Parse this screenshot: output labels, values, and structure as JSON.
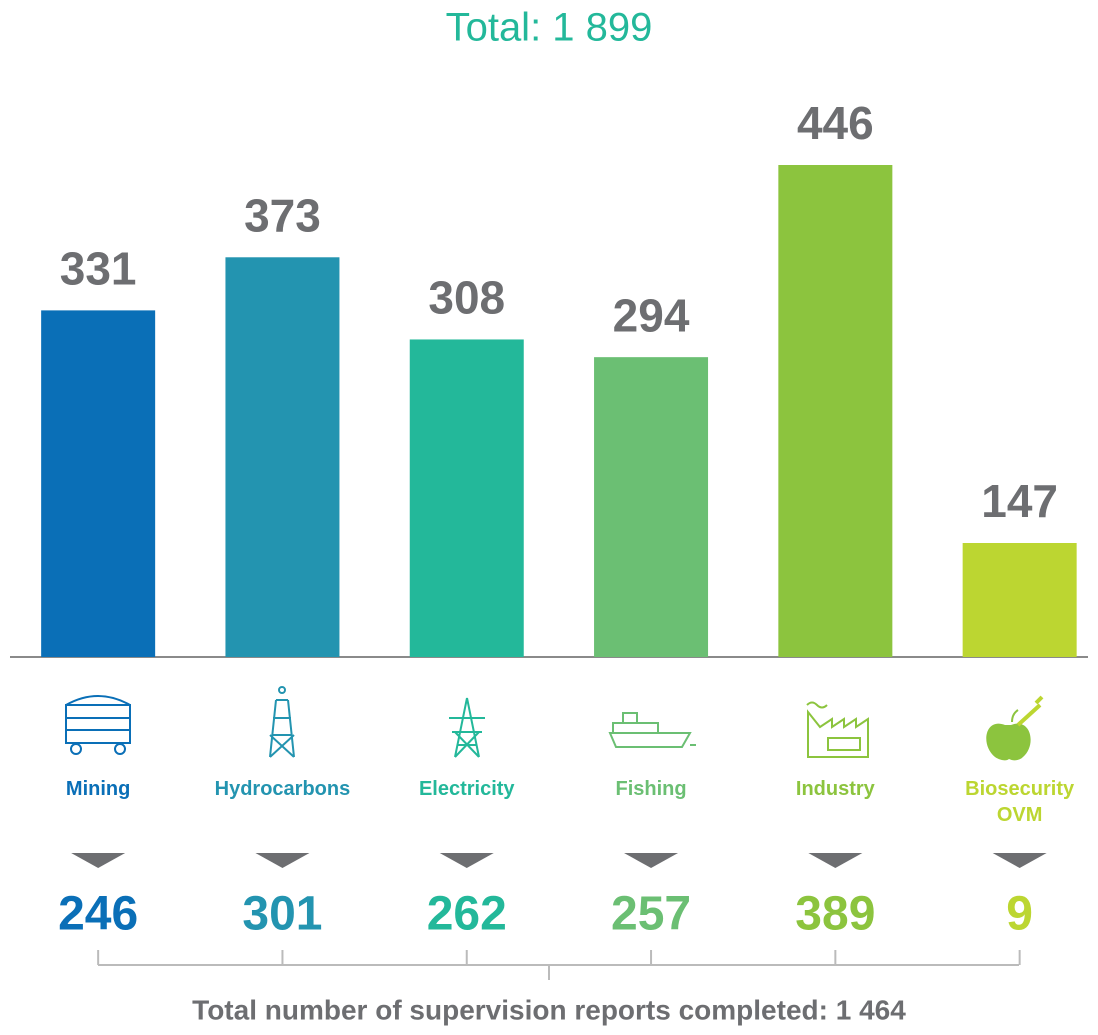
{
  "chart_data": {
    "type": "bar",
    "title": "Total: 1 899",
    "categories": [
      "Mining",
      "Hydrocarbons",
      "Electricity",
      "Fishing",
      "Industry",
      "Biosecurity OVM"
    ],
    "values": [
      331,
      373,
      308,
      294,
      446,
      147
    ],
    "colors": [
      "#0a6fb7",
      "#2394b0",
      "#23b89a",
      "#6bbf73",
      "#8cc43e",
      "#bcd631"
    ],
    "ylim": [
      57,
      446
    ],
    "reports": [
      246,
      301,
      262,
      257,
      389,
      9
    ],
    "footer": "Total number of supervision reports completed: 1 464"
  }
}
